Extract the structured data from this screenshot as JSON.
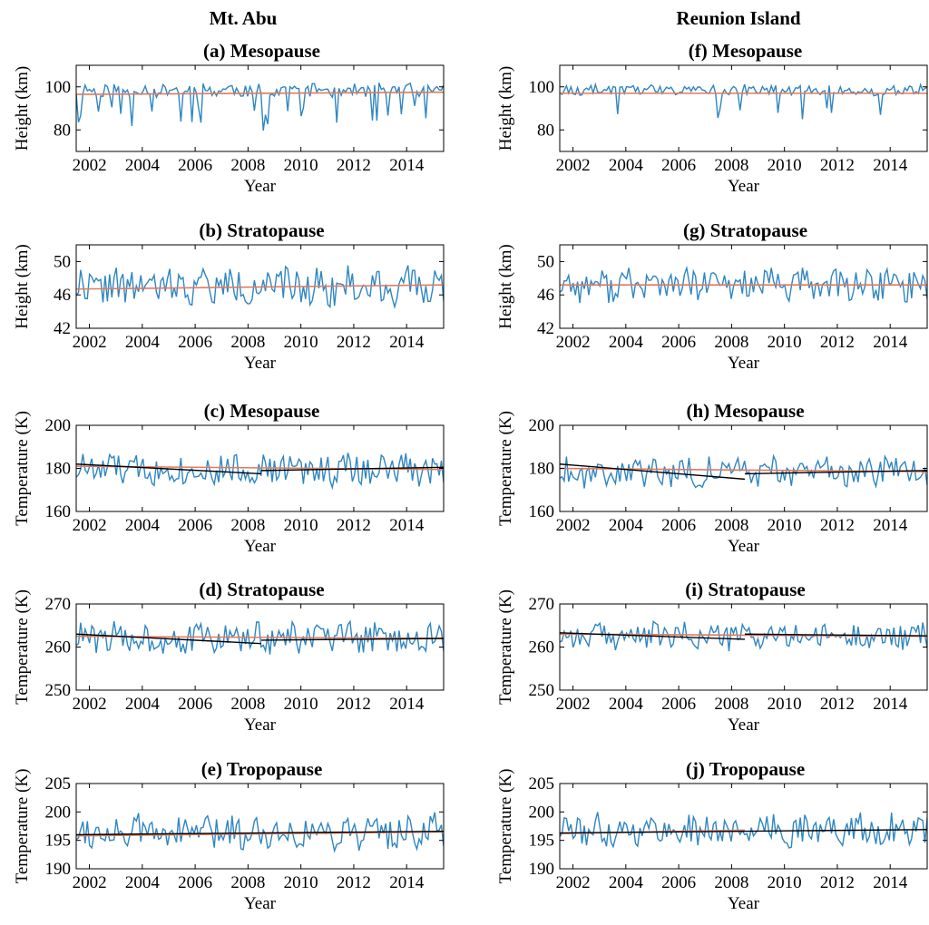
{
  "columns": [
    {
      "title": "Mt. Abu"
    },
    {
      "title": "Reunion Island"
    }
  ],
  "chart_data": [
    {
      "panel": "(a)",
      "title": "Mesopause",
      "type": "line",
      "column": 0,
      "xlabel": "Year",
      "ylabel": "Height (km)",
      "xlim": [
        2001.5,
        2015.4
      ],
      "ylim": [
        70,
        110
      ],
      "xticks": [
        "2002",
        "2004",
        "2006",
        "2008",
        "2010",
        "2012",
        "2014"
      ],
      "yticks": [
        80,
        100
      ],
      "series_seed": 11,
      "series_mean": 98.5,
      "series_amp": 2.2,
      "series_dip_prob": 0.16,
      "series_dip_depth": 14,
      "trends": [
        {
          "kind": "fit",
          "color": "#e07a5f",
          "x": [
            2001.5,
            2015.4
          ],
          "y": [
            96.5,
            97.5
          ]
        }
      ]
    },
    {
      "panel": "(b)",
      "title": "Stratopause",
      "type": "line",
      "column": 0,
      "xlabel": "Year",
      "ylabel": "Height (km)",
      "xlim": [
        2001.5,
        2015.4
      ],
      "ylim": [
        42,
        52
      ],
      "xticks": [
        "2002",
        "2004",
        "2006",
        "2008",
        "2010",
        "2012",
        "2014"
      ],
      "yticks": [
        42,
        46,
        50
      ],
      "series_seed": 22,
      "series_mean": 47,
      "series_amp": 1.6,
      "series_dip_prob": 0,
      "series_dip_depth": 0,
      "trends": [
        {
          "kind": "fit",
          "color": "#e07a5f",
          "x": [
            2001.5,
            2015.4
          ],
          "y": [
            46.7,
            47.2
          ]
        }
      ]
    },
    {
      "panel": "(c)",
      "title": "Mesopause",
      "type": "line",
      "column": 0,
      "xlabel": "Year",
      "ylabel": "Temperature (K)",
      "xlim": [
        2001.5,
        2015.4
      ],
      "ylim": [
        160,
        200
      ],
      "xticks": [
        "2002",
        "2004",
        "2006",
        "2008",
        "2010",
        "2012",
        "2014"
      ],
      "yticks": [
        160,
        180,
        200
      ],
      "series_seed": 33,
      "series_mean": 179.5,
      "series_amp": 5.5,
      "series_dip_prob": 0,
      "series_dip_depth": 0,
      "trends": [
        {
          "kind": "fit",
          "color": "#e07a5f",
          "x": [
            2001.5,
            2015.4
          ],
          "y": [
            181,
            179.5
          ]
        },
        {
          "kind": "segment",
          "color": "#000000",
          "x": [
            2001.5,
            2008.5
          ],
          "y": [
            182,
            177.5
          ]
        },
        {
          "kind": "segment",
          "color": "#000000",
          "x": [
            2008.5,
            2015.4
          ],
          "y": [
            179,
            180.5
          ]
        }
      ]
    },
    {
      "panel": "(d)",
      "title": "Stratopause",
      "type": "line",
      "column": 0,
      "xlabel": "Year",
      "ylabel": "Temperature (K)",
      "xlim": [
        2001.5,
        2015.4
      ],
      "ylim": [
        250,
        270
      ],
      "xticks": [
        "2002",
        "2004",
        "2006",
        "2008",
        "2010",
        "2012",
        "2014"
      ],
      "yticks": [
        250,
        260,
        270
      ],
      "series_seed": 44,
      "series_mean": 262,
      "series_amp": 2.6,
      "series_dip_prob": 0,
      "series_dip_depth": 0,
      "trends": [
        {
          "kind": "fit",
          "color": "#e07a5f",
          "x": [
            2001.5,
            2015.4
          ],
          "y": [
            262.5,
            262
          ]
        },
        {
          "kind": "segment",
          "color": "#000000",
          "x": [
            2001.5,
            2008.5
          ],
          "y": [
            263,
            260.8
          ]
        },
        {
          "kind": "segment",
          "color": "#000000",
          "x": [
            2008.5,
            2015.4
          ],
          "y": [
            261.6,
            262
          ]
        }
      ]
    },
    {
      "panel": "(e)",
      "title": "Tropopause",
      "type": "line",
      "column": 0,
      "xlabel": "Year",
      "ylabel": "Temperature (K)",
      "xlim": [
        2001.5,
        2015.4
      ],
      "ylim": [
        190,
        205
      ],
      "xticks": [
        "2002",
        "2004",
        "2006",
        "2008",
        "2010",
        "2012",
        "2014"
      ],
      "yticks": [
        190,
        195,
        200,
        205
      ],
      "series_seed": 55,
      "series_mean": 196.5,
      "series_amp": 2.2,
      "series_dip_prob": 0,
      "series_dip_depth": 0,
      "trends": [
        {
          "kind": "fit",
          "color": "#e07a5f",
          "x": [
            2001.5,
            2015.4
          ],
          "y": [
            195.8,
            196.5
          ]
        },
        {
          "kind": "segment",
          "color": "#000000",
          "x": [
            2001.5,
            2015.4
          ],
          "y": [
            196,
            196.6
          ]
        }
      ]
    },
    {
      "panel": "(f)",
      "title": "Mesopause",
      "type": "line",
      "column": 1,
      "xlabel": "Year",
      "ylabel": "Height (km)",
      "xlim": [
        2001.5,
        2015.4
      ],
      "ylim": [
        70,
        110
      ],
      "xticks": [
        "2002",
        "2004",
        "2006",
        "2008",
        "2010",
        "2012",
        "2014"
      ],
      "yticks": [
        80,
        100
      ],
      "series_seed": 66,
      "series_mean": 98.5,
      "series_amp": 1.8,
      "series_dip_prob": 0.06,
      "series_dip_depth": 12,
      "trends": [
        {
          "kind": "fit",
          "color": "#e07a5f",
          "x": [
            2001.5,
            2015.4
          ],
          "y": [
            97,
            97
          ]
        }
      ]
    },
    {
      "panel": "(g)",
      "title": "Stratopause",
      "type": "line",
      "column": 1,
      "xlabel": "Year",
      "ylabel": "Height (km)",
      "xlim": [
        2001.5,
        2015.4
      ],
      "ylim": [
        42,
        52
      ],
      "xticks": [
        "2002",
        "2004",
        "2006",
        "2008",
        "2010",
        "2012",
        "2014"
      ],
      "yticks": [
        42,
        46,
        50
      ],
      "series_seed": 77,
      "series_mean": 47.2,
      "series_amp": 1.4,
      "series_dip_prob": 0,
      "series_dip_depth": 0,
      "trends": [
        {
          "kind": "fit",
          "color": "#e07a5f",
          "x": [
            2001.5,
            2015.4
          ],
          "y": [
            47.2,
            47.2
          ]
        }
      ]
    },
    {
      "panel": "(h)",
      "title": "Mesopause",
      "type": "line",
      "column": 1,
      "xlabel": "Year",
      "ylabel": "Temperature (K)",
      "xlim": [
        2001.5,
        2015.4
      ],
      "ylim": [
        160,
        200
      ],
      "xticks": [
        "2002",
        "2004",
        "2006",
        "2008",
        "2010",
        "2012",
        "2014"
      ],
      "yticks": [
        160,
        180,
        200
      ],
      "series_seed": 88,
      "series_mean": 178.5,
      "series_amp": 5,
      "series_dip_prob": 0,
      "series_dip_depth": 0,
      "trends": [
        {
          "kind": "fit",
          "color": "#e07a5f",
          "x": [
            2001.5,
            2015.4
          ],
          "y": [
            180,
            178.5
          ]
        },
        {
          "kind": "segment",
          "color": "#000000",
          "x": [
            2001.5,
            2008.5
          ],
          "y": [
            182,
            175
          ]
        },
        {
          "kind": "segment",
          "color": "#000000",
          "x": [
            2008.5,
            2015.4
          ],
          "y": [
            177.5,
            179
          ]
        }
      ]
    },
    {
      "panel": "(i)",
      "title": "Stratopause",
      "type": "line",
      "column": 1,
      "xlabel": "Year",
      "ylabel": "Temperature (K)",
      "xlim": [
        2001.5,
        2015.4
      ],
      "ylim": [
        250,
        270
      ],
      "xticks": [
        "2002",
        "2004",
        "2006",
        "2008",
        "2010",
        "2012",
        "2014"
      ],
      "yticks": [
        250,
        260,
        270
      ],
      "series_seed": 99,
      "series_mean": 262.5,
      "series_amp": 2.2,
      "series_dip_prob": 0,
      "series_dip_depth": 0,
      "trends": [
        {
          "kind": "fit",
          "color": "#e07a5f",
          "x": [
            2001.5,
            2015.4
          ],
          "y": [
            263,
            262.5
          ]
        },
        {
          "kind": "segment",
          "color": "#000000",
          "x": [
            2001.5,
            2008.5
          ],
          "y": [
            263.3,
            261.8
          ]
        },
        {
          "kind": "segment",
          "color": "#000000",
          "x": [
            2008.5,
            2015.4
          ],
          "y": [
            263,
            262.6
          ]
        }
      ]
    },
    {
      "panel": "(j)",
      "title": "Tropopause",
      "type": "line",
      "column": 1,
      "xlabel": "Year",
      "ylabel": "Temperature (K)",
      "xlim": [
        2001.5,
        2015.4
      ],
      "ylim": [
        190,
        205
      ],
      "xticks": [
        "2002",
        "2004",
        "2006",
        "2008",
        "2010",
        "2012",
        "2014"
      ],
      "yticks": [
        190,
        195,
        200,
        205
      ],
      "series_seed": 111,
      "series_mean": 196.8,
      "series_amp": 2,
      "series_dip_prob": 0,
      "series_dip_depth": 0,
      "trends": [
        {
          "kind": "fit",
          "color": "#e07a5f",
          "x": [
            2001.5,
            2008.5
          ],
          "y": [
            196.2,
            196.8
          ]
        },
        {
          "kind": "segment",
          "color": "#000000",
          "x": [
            2001.5,
            2015.4
          ],
          "y": [
            196.3,
            196.9
          ]
        }
      ]
    }
  ],
  "colors": {
    "series": "#2f86c1",
    "fit": "#e07a5f",
    "segment": "#000000"
  }
}
